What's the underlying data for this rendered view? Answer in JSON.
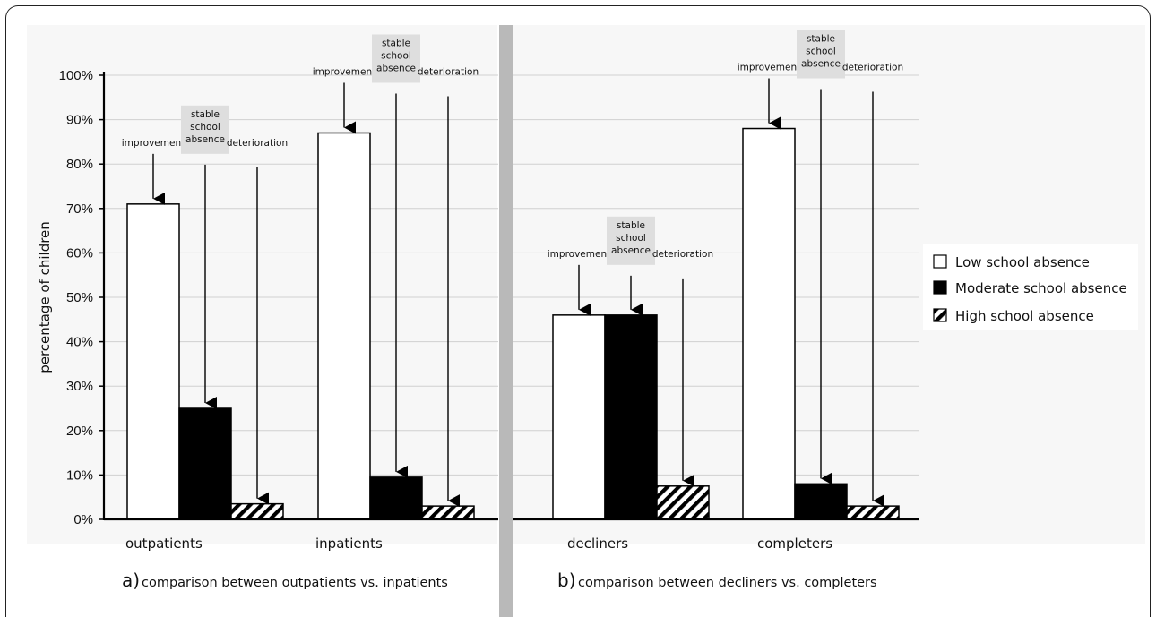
{
  "chart_data": [
    {
      "type": "bar",
      "ylabel": "percentage of children",
      "ylim": [
        0,
        100
      ],
      "yticks": [
        "0%",
        "10%",
        "20%",
        "30%",
        "40%",
        "50%",
        "60%",
        "70%",
        "80%",
        "90%",
        "100%"
      ],
      "grid": true,
      "categories": [
        "outpatients",
        "inpatients"
      ],
      "caption_letter": "a)",
      "caption_text": "comparison between outpatients vs. inpatients",
      "series": [
        {
          "name": "Low school absence",
          "values": [
            71,
            87
          ],
          "annotation": "improvement"
        },
        {
          "name": "Moderate school absence",
          "values": [
            25,
            9.5
          ],
          "annotation": "stable school absence"
        },
        {
          "name": "High school absence",
          "values": [
            3.5,
            3
          ],
          "annotation": "deterioration"
        }
      ]
    },
    {
      "type": "bar",
      "ylim": [
        0,
        100
      ],
      "grid": true,
      "categories": [
        "decliners",
        "completers"
      ],
      "caption_letter": "b)",
      "caption_text": "comparison between decliners vs. completers",
      "series": [
        {
          "name": "Low school absence",
          "values": [
            46,
            88
          ],
          "annotation": "improvement"
        },
        {
          "name": "Moderate school absence",
          "values": [
            46,
            8
          ],
          "annotation": "stable school absence"
        },
        {
          "name": "High school absence",
          "values": [
            7.5,
            3
          ],
          "annotation": "deterioration"
        }
      ]
    }
  ],
  "annotations": {
    "improvement": "improvement",
    "stable": [
      "stable",
      "school",
      "absence"
    ],
    "deterioration": "deterioration"
  },
  "legend": {
    "position": "right",
    "items": [
      {
        "label": "Low school absence",
        "style": "white"
      },
      {
        "label": "Moderate school absence",
        "style": "black"
      },
      {
        "label": "High school absence",
        "style": "hatched"
      }
    ]
  },
  "colors": {
    "divider": "#b9b9b9",
    "grid": "#d0d0d0",
    "annotation_box": "#dedede",
    "bar_black": "#000000",
    "bar_white": "#ffffff"
  }
}
